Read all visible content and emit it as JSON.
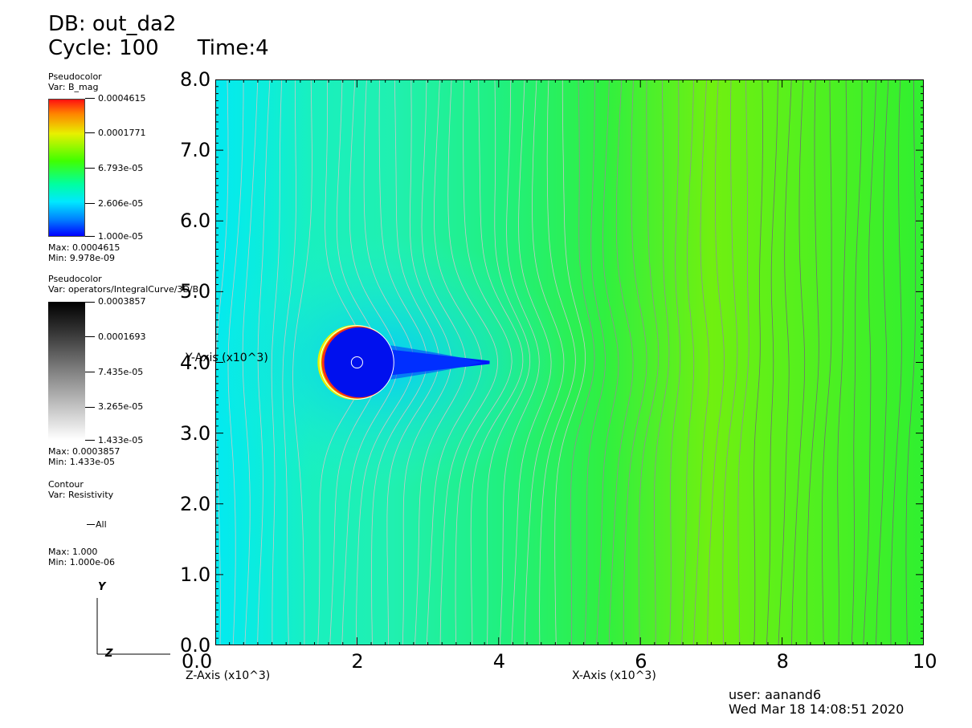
{
  "header": {
    "db": "DB: out_da2",
    "cycle": "Cycle: 100",
    "time": "Time:4"
  },
  "legends": {
    "pseudocolor1": {
      "plot_type": "Pseudocolor",
      "var": "Var: B_mag",
      "ticks": [
        "0.0004615",
        "0.0001771",
        "6.793e-05",
        "2.606e-05",
        "1.000e-05"
      ],
      "max": "Max:  0.0004615",
      "min": "Min:  9.978e-09"
    },
    "pseudocolor2": {
      "plot_type": "Pseudocolor",
      "var": "Var: operators/IntegralCurve/3D/B",
      "ticks": [
        "0.0003857",
        "0.0001693",
        "7.435e-05",
        "3.265e-05",
        "1.433e-05"
      ],
      "max": "Max:  0.0003857",
      "min": "Min:  1.433e-05"
    },
    "contour": {
      "plot_type": "Contour",
      "var": "Var: Resistivity",
      "entry": "All",
      "max": "Max:  1.000",
      "min": "Min:  1.000e-06"
    }
  },
  "triad": {
    "y": "Y",
    "z": "Z"
  },
  "chart_data": {
    "type": "heatmap",
    "title": "",
    "xlabel": "X-Axis (x10^3)",
    "ylabel": "Y-Axis (x10^3)",
    "zlabel": "Z-Axis (x10^3)",
    "xlim": [
      0,
      10
    ],
    "ylim": [
      0,
      8
    ],
    "x_ticks": [
      "0.0",
      "2",
      "4",
      "6",
      "8",
      "10"
    ],
    "y_ticks": [
      "0.0",
      "1.0",
      "2.0",
      "3.0",
      "4.0",
      "5.0",
      "6.0",
      "7.0",
      "8.0"
    ],
    "field": "B_mag",
    "circle": {
      "cx": 2.0,
      "cy": 4.0,
      "r": 0.52
    },
    "inner_circle": {
      "cx": 2.0,
      "cy": 4.0,
      "r": 0.08
    },
    "colors": {
      "red": "#ff2020",
      "yellow": "#f0f000",
      "green": "#20e020",
      "cyan": "#00f0f0",
      "blue": "#0010ff",
      "background_cyan": "#20f0c0",
      "background_green": "#60f020"
    }
  },
  "footer": {
    "user": "user: aanand6",
    "date": "Wed Mar 18 14:08:51 2020"
  }
}
